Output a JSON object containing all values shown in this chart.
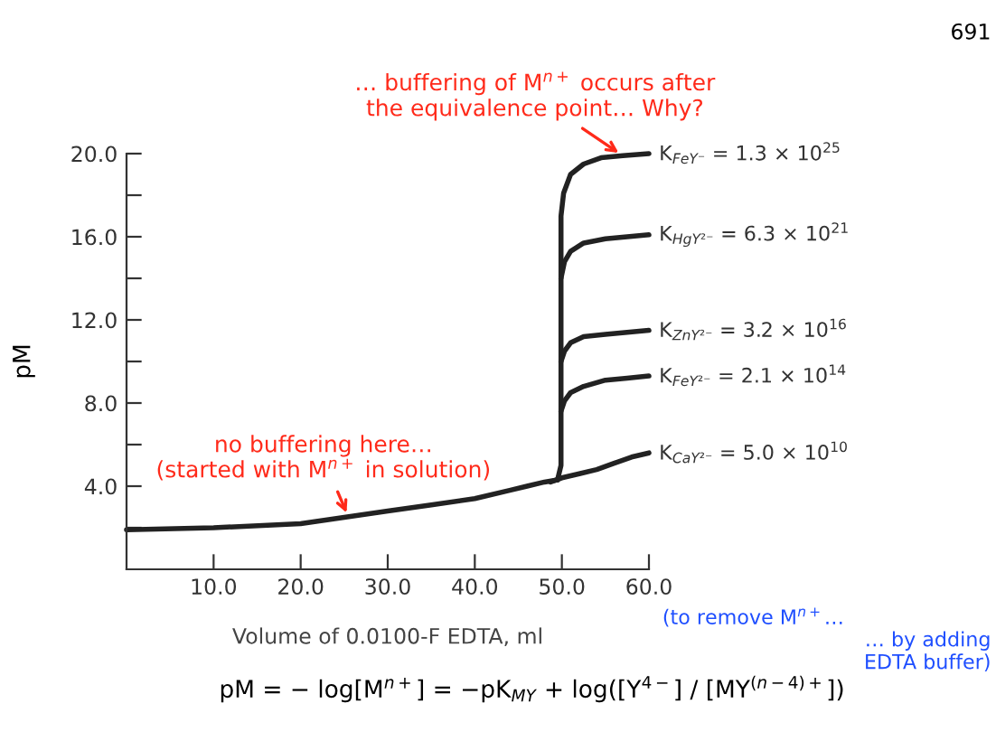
{
  "chart_data": {
    "type": "line",
    "xlabel": "Volume of 0.0100‑F EDTA, ml",
    "ylabel": "pM",
    "xlim": [
      0,
      60
    ],
    "ylim": [
      0,
      20
    ],
    "xticks": [
      {
        "value": 10,
        "label": "10.0"
      },
      {
        "value": 20,
        "label": "20.0"
      },
      {
        "value": 30,
        "label": "30.0"
      },
      {
        "value": 40,
        "label": "40.0"
      },
      {
        "value": 50,
        "label": "50.0"
      },
      {
        "value": 60,
        "label": "60.0"
      }
    ],
    "yticks": [
      {
        "value": 2,
        "label": null
      },
      {
        "value": 4,
        "label": "4.0"
      },
      {
        "value": 6,
        "label": null
      },
      {
        "value": 8,
        "label": "8.0"
      },
      {
        "value": 10,
        "label": null
      },
      {
        "value": 12,
        "label": "12.0"
      },
      {
        "value": 14,
        "label": null
      },
      {
        "value": 16,
        "label": "16.0"
      },
      {
        "value": 18,
        "label": null
      },
      {
        "value": 20,
        "label": "20.0"
      }
    ],
    "grid": false,
    "legend": false,
    "marker": "none",
    "line_style": "solid",
    "series": [
      {
        "color": "#222222",
        "x": [
          0,
          10,
          20,
          25,
          30,
          35,
          40,
          44,
          46,
          48,
          49.5
        ],
        "values": [
          1.9,
          2.0,
          2.2,
          2.5,
          2.8,
          3.1,
          3.4,
          3.8,
          4.0,
          4.2,
          4.3
        ]
      },
      {
        "name": "K$_{FeY⁻}$ = 1.3 × 10$^{25}$",
        "color": "#222222",
        "x": [
          49.5,
          49.9,
          49.9,
          50.2,
          51,
          52.5,
          54.5,
          57,
          60
        ],
        "values": [
          4.3,
          5.0,
          17.0,
          18.1,
          19.0,
          19.5,
          19.8,
          19.9,
          20.0
        ]
      },
      {
        "name": "K$_{HgY²⁻}$ = 6.3 × 10$^{21}$",
        "color": "#222222",
        "x": [
          49.9,
          50.3,
          51,
          52.5,
          55,
          57.5,
          60
        ],
        "values": [
          14.0,
          14.8,
          15.3,
          15.7,
          15.9,
          16.0,
          16.1
        ]
      },
      {
        "name": "K$_{ZnY²⁻}$ = 3.2 × 10$^{16}$",
        "color": "#222222",
        "x": [
          49.9,
          50.3,
          51,
          52.5,
          55,
          57.5,
          60
        ],
        "values": [
          10.0,
          10.5,
          10.9,
          11.2,
          11.3,
          11.4,
          11.5
        ]
      },
      {
        "name": "K$_{FeY²⁻}$ = 2.1 × 10$^{14}$",
        "color": "#222222",
        "x": [
          49.9,
          50.3,
          51,
          52.5,
          55,
          57.5,
          60
        ],
        "values": [
          7.6,
          8.1,
          8.5,
          8.8,
          9.1,
          9.2,
          9.3
        ]
      },
      {
        "name": "K$_{CaY²⁻}$ = 5.0 × 10$^{10}$",
        "color": "#222222",
        "x": [
          48.7,
          50,
          52,
          54,
          56,
          58,
          60
        ],
        "values": [
          4.2,
          4.4,
          4.6,
          4.8,
          5.1,
          5.4,
          5.6
        ]
      }
    ],
    "annotations": [
      {
        "text": "… buffering of M$^{n+}$ occurs after\nthe equivalence point… Why?",
        "x": 57,
        "y": 19.9
      },
      {
        "text": "no buffering here…\n(started with M$^{n+}$ in solution)",
        "x": 25.5,
        "y": 2.5
      },
      "(to remove M$^{n+}$…",
      "… by adding\n   EDTA buffer)",
      "pM = − log[M$^{n+}$] = −pK$_{MY}$ + log([Y$^{4−}$] / [MY$^{(n−4)+}$])",
      "691"
    ]
  }
}
